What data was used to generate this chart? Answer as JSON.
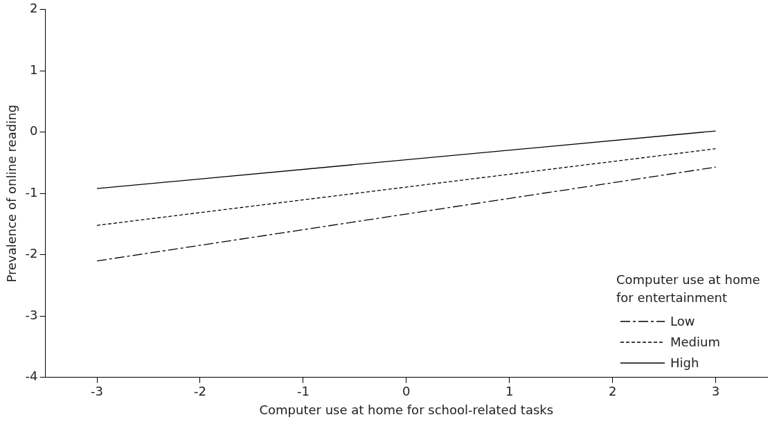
{
  "chart_data": {
    "type": "line",
    "xlabel": "Computer use at home for school-related tasks",
    "ylabel": "Prevalence of online reading",
    "legend_title": "Computer use at home\nfor entertainment",
    "legend": "bottom right",
    "marker": "none",
    "grid": false,
    "x": [
      -3,
      3
    ],
    "xlim": [
      -3.5,
      3.5
    ],
    "xticks": [
      -3,
      -2,
      -1,
      0,
      1,
      2,
      3
    ],
    "ylim": [
      -4,
      2
    ],
    "yticks": [
      -4,
      -3,
      -2,
      -1,
      0,
      1,
      2
    ],
    "series": [
      {
        "name": "Low",
        "color": "#000000",
        "line_style": "dashdot",
        "values": [
          -2.1,
          -0.57
        ]
      },
      {
        "name": "Medium",
        "color": "#000000",
        "line_style": "dashed",
        "values": [
          -1.52,
          -0.27
        ]
      },
      {
        "name": "High",
        "color": "#000000",
        "line_style": "solid",
        "values": [
          -0.92,
          0.02
        ]
      }
    ]
  }
}
